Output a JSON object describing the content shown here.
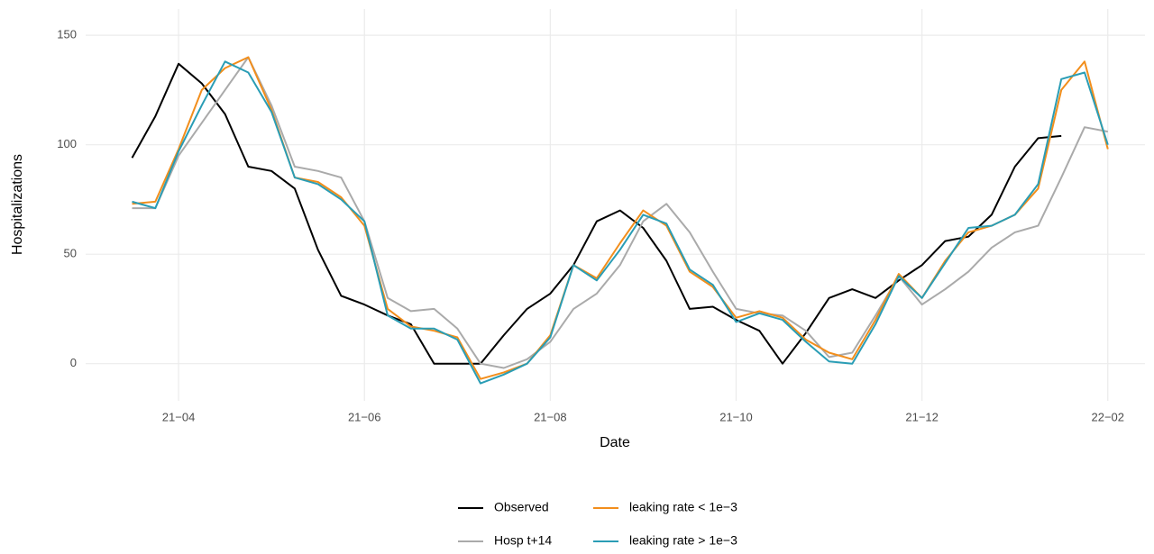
{
  "chart_data": {
    "type": "line",
    "x_label": "Date",
    "y_label": "Hospitalizations",
    "x": [
      3.5,
      3.75,
      4.0,
      4.25,
      4.5,
      4.75,
      5.0,
      5.25,
      5.5,
      5.75,
      6.0,
      6.25,
      6.5,
      6.75,
      7.0,
      7.25,
      7.5,
      7.75,
      8.0,
      8.25,
      8.5,
      8.75,
      9.0,
      9.25,
      9.5,
      9.75,
      10.0,
      10.25,
      10.5,
      10.75,
      11.0,
      11.25,
      11.5,
      11.75,
      12.0,
      12.25,
      12.5,
      12.75,
      13.0,
      13.25,
      13.5,
      13.75,
      14.0
    ],
    "series": [
      {
        "name": "Observed",
        "color": "#000000",
        "values": [
          94,
          113,
          137,
          128,
          114,
          90,
          88,
          80,
          52,
          31,
          27,
          22,
          18,
          0,
          0,
          0,
          13,
          25,
          32,
          45,
          65,
          70,
          62,
          47,
          25,
          26,
          20,
          15,
          0,
          14,
          30,
          34,
          30,
          38,
          45,
          56,
          58,
          68,
          90,
          103,
          104,
          null,
          null
        ]
      },
      {
        "name": "Hosp t+14",
        "color": "#aaaaaa",
        "values": [
          71,
          71,
          95,
          110,
          125,
          140,
          118,
          90,
          88,
          85,
          65,
          30,
          24,
          25,
          16,
          0,
          -2,
          2,
          10,
          25,
          32,
          45,
          65,
          73,
          60,
          42,
          25,
          23,
          22,
          15,
          3,
          5,
          22,
          40,
          27,
          34,
          42,
          53,
          60,
          63,
          85,
          108,
          106
        ]
      },
      {
        "name": "leaking rate < 1e−3",
        "color": "#f28e1c",
        "values": [
          73,
          74,
          98,
          125,
          135,
          140,
          116,
          85,
          83,
          76,
          63,
          25,
          17,
          15,
          12,
          -7,
          -4,
          0,
          13,
          45,
          39,
          55,
          70,
          63,
          42,
          35,
          21,
          24,
          21,
          11,
          5,
          2,
          20,
          41,
          30,
          47,
          60,
          63,
          68,
          80,
          125,
          138,
          98
        ]
      },
      {
        "name": "leaking rate > 1e−3",
        "color": "#2a9db5",
        "values": [
          74,
          71,
          97,
          118,
          138,
          133,
          115,
          85,
          82,
          75,
          65,
          22,
          16,
          16,
          11,
          -9,
          -5,
          0,
          12,
          45,
          38,
          52,
          68,
          64,
          43,
          36,
          19,
          23,
          20,
          10,
          1,
          0,
          18,
          40,
          30,
          46,
          62,
          63,
          68,
          82,
          130,
          133,
          100
        ]
      }
    ],
    "xlim": [
      3,
      14.4
    ],
    "xticks": [
      {
        "value": 4,
        "label": "21−04"
      },
      {
        "value": 6,
        "label": "21−06"
      },
      {
        "value": 8,
        "label": "21−08"
      },
      {
        "value": 10,
        "label": "21−10"
      },
      {
        "value": 12,
        "label": "21−12"
      },
      {
        "value": 14,
        "label": "22−02"
      }
    ],
    "ylim": [
      -17,
      162
    ],
    "yticks": [
      0,
      50,
      100,
      150
    ],
    "grid": true,
    "legend": "bottom"
  }
}
